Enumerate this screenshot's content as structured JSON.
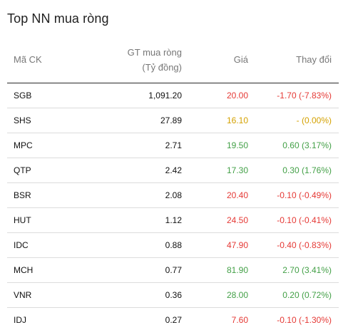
{
  "title": "Top NN mua ròng",
  "headers": {
    "code": "Mã CK",
    "gt_line1": "GT mua ròng",
    "gt_line2": "(Tỷ đồng)",
    "price": "Giá",
    "change": "Thay đổi"
  },
  "colors": {
    "down": "#e53935",
    "up": "#43a047",
    "ref": "#d4a100"
  },
  "rows": [
    {
      "code": "SGB",
      "gt": "1,091.20",
      "price": "20.00",
      "change": "-1.70 (-7.83%)",
      "trend": "down"
    },
    {
      "code": "SHS",
      "gt": "27.89",
      "price": "16.10",
      "change": "- (0.00%)",
      "trend": "ref"
    },
    {
      "code": "MPC",
      "gt": "2.71",
      "price": "19.50",
      "change": "0.60 (3.17%)",
      "trend": "up"
    },
    {
      "code": "QTP",
      "gt": "2.42",
      "price": "17.30",
      "change": "0.30 (1.76%)",
      "trend": "up"
    },
    {
      "code": "BSR",
      "gt": "2.08",
      "price": "20.40",
      "change": "-0.10 (-0.49%)",
      "trend": "down"
    },
    {
      "code": "HUT",
      "gt": "1.12",
      "price": "24.50",
      "change": "-0.10 (-0.41%)",
      "trend": "down"
    },
    {
      "code": "IDC",
      "gt": "0.88",
      "price": "47.90",
      "change": "-0.40 (-0.83%)",
      "trend": "down"
    },
    {
      "code": "MCH",
      "gt": "0.77",
      "price": "81.90",
      "change": "2.70 (3.41%)",
      "trend": "up"
    },
    {
      "code": "VNR",
      "gt": "0.36",
      "price": "28.00",
      "change": "0.20 (0.72%)",
      "trend": "up"
    },
    {
      "code": "IDJ",
      "gt": "0.27",
      "price": "7.60",
      "change": "-0.10 (-1.30%)",
      "trend": "down"
    }
  ]
}
